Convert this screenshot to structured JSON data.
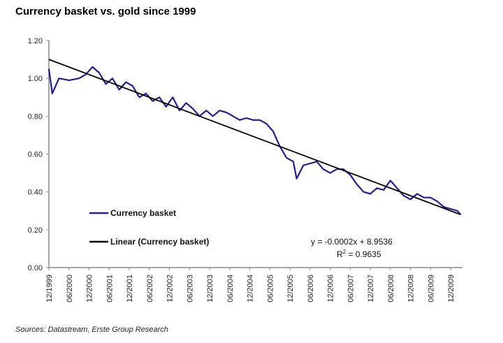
{
  "chart_data": {
    "type": "line",
    "title": "Currency basket vs. gold since 1999",
    "xlabel": "",
    "ylabel": "",
    "ylim": [
      0,
      1.2
    ],
    "yticks": [
      "0.00",
      "0.20",
      "0.40",
      "0.60",
      "0.80",
      "1.00",
      "1.20"
    ],
    "xticks": [
      "12/1999",
      "06/2000",
      "12/2000",
      "06/2001",
      "12/2001",
      "06/2002",
      "12/2002",
      "06/2003",
      "12/2003",
      "06/2004",
      "12/2004",
      "06/2005",
      "12/2005",
      "06/2006",
      "12/2006",
      "06/2007",
      "12/2007",
      "06/2008",
      "12/2008",
      "06/2009",
      "12/2009"
    ],
    "grid": false,
    "legend_placement": "bottom-left",
    "series": [
      {
        "name": "Currency basket",
        "color": "#1f1f8f",
        "x": [
          "1999-12",
          "2000-01",
          "2000-03",
          "2000-06",
          "2000-09",
          "2000-11",
          "2001-01",
          "2001-03",
          "2001-05",
          "2001-07",
          "2001-09",
          "2001-11",
          "2002-01",
          "2002-03",
          "2002-05",
          "2002-07",
          "2002-09",
          "2002-11",
          "2003-01",
          "2003-03",
          "2003-05",
          "2003-07",
          "2003-09",
          "2003-11",
          "2004-01",
          "2004-03",
          "2004-05",
          "2004-07",
          "2004-09",
          "2004-11",
          "2005-01",
          "2005-03",
          "2005-05",
          "2005-07",
          "2005-09",
          "2005-11",
          "2006-01",
          "2006-02",
          "2006-04",
          "2006-06",
          "2006-08",
          "2006-10",
          "2006-12",
          "2007-02",
          "2007-04",
          "2007-06",
          "2007-08",
          "2007-10",
          "2007-12",
          "2008-02",
          "2008-04",
          "2008-06",
          "2008-08",
          "2008-10",
          "2008-12",
          "2009-02",
          "2009-04",
          "2009-06",
          "2009-08",
          "2009-10",
          "2009-12",
          "2010-02",
          "2010-03"
        ],
        "values": [
          1.05,
          0.92,
          1.0,
          0.99,
          1.0,
          1.02,
          1.06,
          1.03,
          0.97,
          1.0,
          0.94,
          0.98,
          0.96,
          0.9,
          0.92,
          0.88,
          0.9,
          0.85,
          0.9,
          0.83,
          0.87,
          0.84,
          0.8,
          0.83,
          0.8,
          0.83,
          0.82,
          0.8,
          0.78,
          0.79,
          0.78,
          0.78,
          0.76,
          0.72,
          0.64,
          0.58,
          0.56,
          0.47,
          0.54,
          0.55,
          0.56,
          0.52,
          0.5,
          0.52,
          0.52,
          0.49,
          0.44,
          0.4,
          0.39,
          0.42,
          0.41,
          0.46,
          0.42,
          0.38,
          0.36,
          0.39,
          0.37,
          0.37,
          0.35,
          0.32,
          0.31,
          0.3,
          0.28
        ]
      },
      {
        "name": "Linear (Currency basket)",
        "color": "#000000",
        "x": [
          "1999-12",
          "2010-03"
        ],
        "values": [
          1.1,
          0.28
        ]
      }
    ],
    "annotations": {
      "equation": "y = -0.0002x + 8.9536",
      "r2_prefix": "R",
      "r2_sup": "2",
      "r2_value": " = 0.9635"
    }
  },
  "source": "Sources: Datastream, Erste Group Research"
}
